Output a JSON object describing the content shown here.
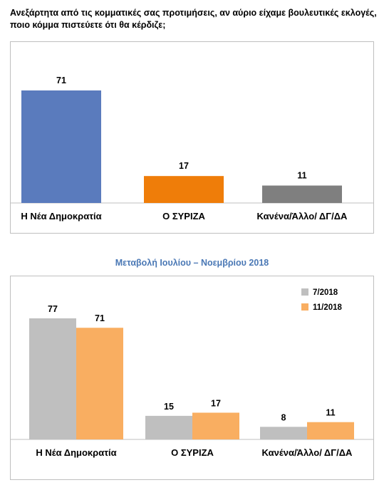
{
  "question": "Ανεξάρτητα από τις κομματικές σας προτιμήσεις, αν αύριο είχαμε βουλευτικές εκλογές, ποιο κόμμα πιστεύετε ότι θα κέρδιζε;",
  "subtitle": "Μεταβολή Ιουλίου – Νοεμβρίου 2018",
  "chart_data": [
    {
      "type": "bar",
      "categories": [
        "Η Νέα Δημοκρατία",
        "Ο ΣΥΡΙΖΑ",
        "Κανένα/Άλλο/ ΔΓ/ΔΑ"
      ],
      "values": [
        71,
        17,
        11
      ],
      "colors": [
        "#5a7bbd",
        "#ef7d09",
        "#7f7f7f"
      ],
      "ylim": [
        0,
        71
      ]
    },
    {
      "type": "bar",
      "categories": [
        "Η Νέα Δημοκρατία",
        "Ο ΣΥΡΙΖΑ",
        "Κανένα/Άλλο/ ΔΓ/ΔΑ"
      ],
      "series": [
        {
          "name": "7/2018",
          "values": [
            77,
            15,
            8
          ],
          "color": "#bfbfbf"
        },
        {
          "name": "11/2018",
          "values": [
            71,
            17,
            11
          ],
          "color": "#f9ae61"
        }
      ],
      "legend": "top-right",
      "ylim": [
        0,
        77
      ]
    }
  ]
}
